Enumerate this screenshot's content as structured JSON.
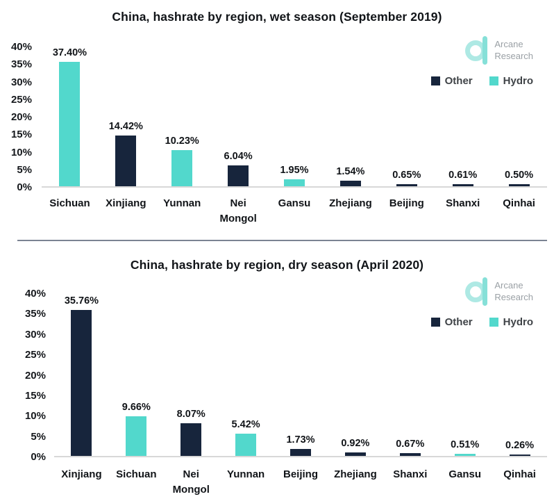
{
  "logo": {
    "line1": "Arcane",
    "line2": "Research"
  },
  "colors": {
    "other": "#17253c",
    "hydro": "#52d8cc",
    "divider": "#7b8493",
    "baseline": "#d8d8d8",
    "logo_ring": "#aee9e4",
    "logo_bar": "#86e0d8",
    "logo_text": "#9aa0a5"
  },
  "chart_data": [
    {
      "type": "bar",
      "title": "China, hashrate by region, wet season (September 2019)",
      "categories": [
        "Sichuan",
        "Xinjiang",
        "Yunnan",
        "Nei Mongol",
        "Gansu",
        "Zhejiang",
        "Beijing",
        "Shanxi",
        "Qinhai"
      ],
      "values": [
        37.4,
        14.42,
        10.23,
        6.04,
        1.95,
        1.54,
        0.65,
        0.61,
        0.5
      ],
      "labels": [
        "37.40%",
        "14.42%",
        "10.23%",
        "6.04%",
        "1.95%",
        "1.54%",
        "0.65%",
        "0.61%",
        "0.50%"
      ],
      "series_by_point": [
        "Hydro",
        "Other",
        "Hydro",
        "Other",
        "Hydro",
        "Other",
        "Other",
        "Other",
        "Other"
      ],
      "ylim": [
        0,
        40
      ],
      "yticks": [
        "40%",
        "35%",
        "30%",
        "25%",
        "20%",
        "15%",
        "10%",
        "5%",
        "0%"
      ],
      "grid": false,
      "legend": [
        "Other",
        "Hydro"
      ],
      "legend_position": "right"
    },
    {
      "type": "bar",
      "title": "China, hashrate by region, dry season (April 2020)",
      "categories": [
        "Xinjiang",
        "Sichuan",
        "Nei Mongol",
        "Yunnan",
        "Beijing",
        "Zhejiang",
        "Shanxi",
        "Gansu",
        "Qinhai"
      ],
      "values": [
        35.76,
        9.66,
        8.07,
        5.42,
        1.73,
        0.92,
        0.67,
        0.51,
        0.26
      ],
      "labels": [
        "35.76%",
        "9.66%",
        "8.07%",
        "5.42%",
        "1.73%",
        "0.92%",
        "0.67%",
        "0.51%",
        "0.26%"
      ],
      "series_by_point": [
        "Other",
        "Hydro",
        "Other",
        "Hydro",
        "Other",
        "Other",
        "Other",
        "Hydro",
        "Other"
      ],
      "ylim": [
        0,
        40
      ],
      "yticks": [
        "40%",
        "35%",
        "30%",
        "25%",
        "20%",
        "15%",
        "10%",
        "5%",
        "0%"
      ],
      "grid": false,
      "legend": [
        "Other",
        "Hydro"
      ],
      "legend_position": "right"
    }
  ]
}
